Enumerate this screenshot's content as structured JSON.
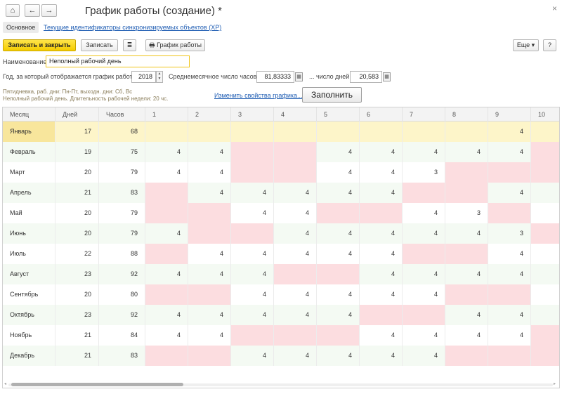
{
  "window": {
    "title": "График работы (создание) *",
    "home_icon": "⌂",
    "back_icon": "←",
    "forward_icon": "→",
    "close_icon": "×"
  },
  "tabs": {
    "main": "Основное",
    "link": "Текущие идентификаторы синхронизируемых объектов (XP)"
  },
  "toolbar": {
    "save_close": "Записать и закрыть",
    "save": "Записать",
    "list_icon": "≣",
    "print_icon": "🖶",
    "schedule": "График работы",
    "more": "Еще",
    "more_arrow": "▾",
    "help": "?"
  },
  "form": {
    "name_label": "Наименование:",
    "name_value": "Неполный рабочий день",
    "year_label": "Год, за который отображается график работы:",
    "year_value": "2018",
    "avg_hours_label": "Среднемесячное число часов:",
    "avg_hours_value": "81,83333",
    "avg_days_label": "... число дней:",
    "avg_days_value": "20,583",
    "spin_up": "▲",
    "spin_down": "▼",
    "calc_icon": "▦"
  },
  "info": {
    "line1": "Пятидневка, раб. дни: Пн-Пт, выходн. дни: Сб, Вс",
    "line2": "Неполный рабочий день. Длительность рабочей недели: 20 чс.",
    "change_link": "Изменить свойства графика...",
    "fill_button": "Заполнить"
  },
  "table": {
    "headers": [
      "Месяц",
      "Дней",
      "Часов",
      "1",
      "2",
      "3",
      "4",
      "5",
      "6",
      "7",
      "8",
      "9",
      "10"
    ],
    "rows": [
      {
        "month": "Январь",
        "days": "17",
        "hours": "68",
        "cells": [
          "",
          "",
          "",
          "",
          "",
          "",
          "",
          "",
          "4",
          ""
        ]
      },
      {
        "month": "Февраль",
        "days": "19",
        "hours": "75",
        "cells": [
          "4",
          "4",
          "",
          "",
          "4",
          "4",
          "4",
          "4",
          "4",
          ""
        ]
      },
      {
        "month": "Март",
        "days": "20",
        "hours": "79",
        "cells": [
          "4",
          "4",
          "",
          "",
          "4",
          "4",
          "3",
          "",
          "",
          ""
        ]
      },
      {
        "month": "Апрель",
        "days": "21",
        "hours": "83",
        "cells": [
          "",
          "4",
          "4",
          "4",
          "4",
          "4",
          "",
          "",
          "4",
          ""
        ]
      },
      {
        "month": "Май",
        "days": "20",
        "hours": "79",
        "cells": [
          "",
          "",
          "4",
          "4",
          "",
          "",
          "4",
          "3",
          "",
          ""
        ]
      },
      {
        "month": "Июнь",
        "days": "20",
        "hours": "79",
        "cells": [
          "4",
          "",
          "",
          "4",
          "4",
          "4",
          "4",
          "4",
          "3",
          ""
        ]
      },
      {
        "month": "Июль",
        "days": "22",
        "hours": "88",
        "cells": [
          "",
          "4",
          "4",
          "4",
          "4",
          "4",
          "",
          "",
          "4",
          ""
        ]
      },
      {
        "month": "Август",
        "days": "23",
        "hours": "92",
        "cells": [
          "4",
          "4",
          "4",
          "",
          "",
          "4",
          "4",
          "4",
          "4",
          ""
        ]
      },
      {
        "month": "Сентябрь",
        "days": "20",
        "hours": "80",
        "cells": [
          "",
          "",
          "4",
          "4",
          "4",
          "4",
          "4",
          "",
          "",
          ""
        ]
      },
      {
        "month": "Октябрь",
        "days": "23",
        "hours": "92",
        "cells": [
          "4",
          "4",
          "4",
          "4",
          "4",
          "",
          "",
          "4",
          "4",
          ""
        ]
      },
      {
        "month": "Ноябрь",
        "days": "21",
        "hours": "84",
        "cells": [
          "4",
          "4",
          "",
          "",
          "",
          "4",
          "4",
          "4",
          "4",
          ""
        ]
      },
      {
        "month": "Декабрь",
        "days": "21",
        "hours": "83",
        "cells": [
          "",
          "",
          "4",
          "4",
          "4",
          "4",
          "4",
          "",
          "",
          ""
        ]
      }
    ],
    "off_days": [
      [
        false,
        false,
        false,
        false,
        false,
        false,
        false,
        false,
        false,
        false
      ],
      [
        false,
        false,
        true,
        true,
        false,
        false,
        false,
        false,
        false,
        true
      ],
      [
        false,
        false,
        true,
        true,
        false,
        false,
        false,
        true,
        true,
        true
      ],
      [
        true,
        false,
        false,
        false,
        false,
        false,
        true,
        true,
        false,
        false
      ],
      [
        true,
        true,
        false,
        false,
        true,
        true,
        false,
        false,
        true,
        false
      ],
      [
        false,
        true,
        true,
        false,
        false,
        false,
        false,
        false,
        false,
        true
      ],
      [
        true,
        false,
        false,
        false,
        false,
        false,
        true,
        true,
        false,
        false
      ],
      [
        false,
        false,
        false,
        true,
        true,
        false,
        false,
        false,
        false,
        false
      ],
      [
        true,
        true,
        false,
        false,
        false,
        false,
        false,
        true,
        true,
        false
      ],
      [
        false,
        false,
        false,
        false,
        false,
        true,
        true,
        false,
        false,
        false
      ],
      [
        false,
        false,
        true,
        true,
        true,
        false,
        false,
        false,
        false,
        true
      ],
      [
        true,
        true,
        false,
        false,
        false,
        false,
        false,
        true,
        true,
        true
      ]
    ],
    "alt_rows": [
      false,
      true,
      false,
      true,
      false,
      true,
      false,
      true,
      false,
      true,
      false,
      true
    ],
    "selected_row": 0,
    "scroll_left": "◂",
    "scroll_right": "▸"
  }
}
